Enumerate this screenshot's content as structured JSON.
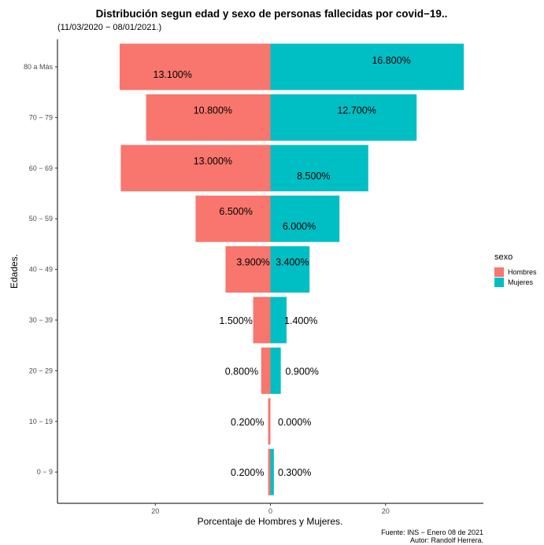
{
  "chart_data": {
    "type": "bar",
    "orientation": "horizontal",
    "title": "Distribución segun edad y sexo de personas fallecidas por covid−19..",
    "subtitle": "(11/03/2020 − 08/01/2021.)",
    "xlabel": "Porcentaje de Hombres y Mujeres.",
    "ylabel": "Edades.",
    "xlim": [
      -37,
      37
    ],
    "x_ticks": [
      -20,
      0,
      20
    ],
    "x_tick_labels": [
      "20",
      "0",
      "20"
    ],
    "categories": [
      "80 a Más",
      "70 − 79",
      "60 − 69",
      "50 − 59",
      "40 − 49",
      "30 − 39",
      "20 − 29",
      "10 − 19",
      "0 − 9"
    ],
    "series": [
      {
        "name": "Hombres",
        "color": "#F8766D",
        "values": [
          -26.2,
          -21.6,
          -26.0,
          -13.0,
          -7.8,
          -3.0,
          -1.6,
          -0.4,
          -0.4
        ],
        "labels": [
          "13.100%",
          "10.800%",
          "13.000%",
          "6.500%",
          "3.900%",
          "1.500%",
          "0.800%",
          "0.200%",
          "0.200%"
        ]
      },
      {
        "name": "Mujeres",
        "color": "#00BFC4",
        "values": [
          33.6,
          25.4,
          17.0,
          12.0,
          6.8,
          2.8,
          1.8,
          0.0,
          0.6
        ],
        "labels": [
          "16.800%",
          "12.700%",
          "8.500%",
          "6.000%",
          "3.400%",
          "1.400%",
          "0.900%",
          "0.000%",
          "0.300%"
        ]
      }
    ],
    "label_x": [
      [
        -17,
        21
      ],
      [
        -10,
        15
      ],
      [
        -10,
        7.5
      ],
      [
        -6,
        5
      ],
      [
        -3,
        3.8
      ],
      [
        -6,
        5.3
      ],
      [
        -5,
        5.5
      ],
      [
        -4,
        4.2
      ],
      [
        -4,
        4.2
      ]
    ],
    "label_dy": [
      [
        10,
        -8
      ],
      [
        -9,
        -9
      ],
      [
        -9,
        10
      ],
      [
        -9,
        10
      ],
      [
        -9,
        -9
      ],
      [
        1,
        1
      ],
      [
        1,
        1
      ],
      [
        1,
        1
      ],
      [
        1,
        1
      ]
    ],
    "legend": {
      "title": "sexo",
      "position": "right",
      "entries": [
        "Hombres",
        "Mujeres"
      ]
    },
    "grid": false
  },
  "caption": {
    "source": "Fuente: INS − Enero 08 de 2021",
    "author": "Autor: Randolf Herrera."
  }
}
